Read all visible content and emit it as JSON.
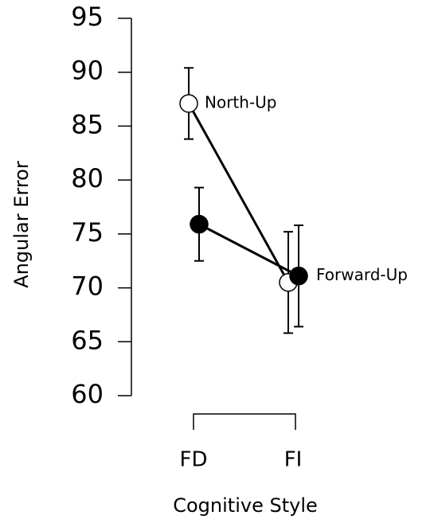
{
  "chart_data": {
    "type": "line",
    "x_label": "Cognitive Style",
    "y_label": "Angular Error",
    "categories": [
      "FD",
      "FI"
    ],
    "series": [
      {
        "name": "North-Up",
        "color": "#000000",
        "filled": false,
        "values": [
          87.1,
          70.5
        ],
        "errors": [
          3.3,
          4.7
        ]
      },
      {
        "name": "Forward-Up",
        "color": "#000000",
        "filled": true,
        "values": [
          75.9,
          71.1
        ],
        "errors": [
          3.4,
          4.7
        ]
      }
    ],
    "ylim": [
      60,
      95
    ],
    "yticks": [
      60,
      65,
      70,
      75,
      80,
      85,
      90,
      95
    ]
  }
}
